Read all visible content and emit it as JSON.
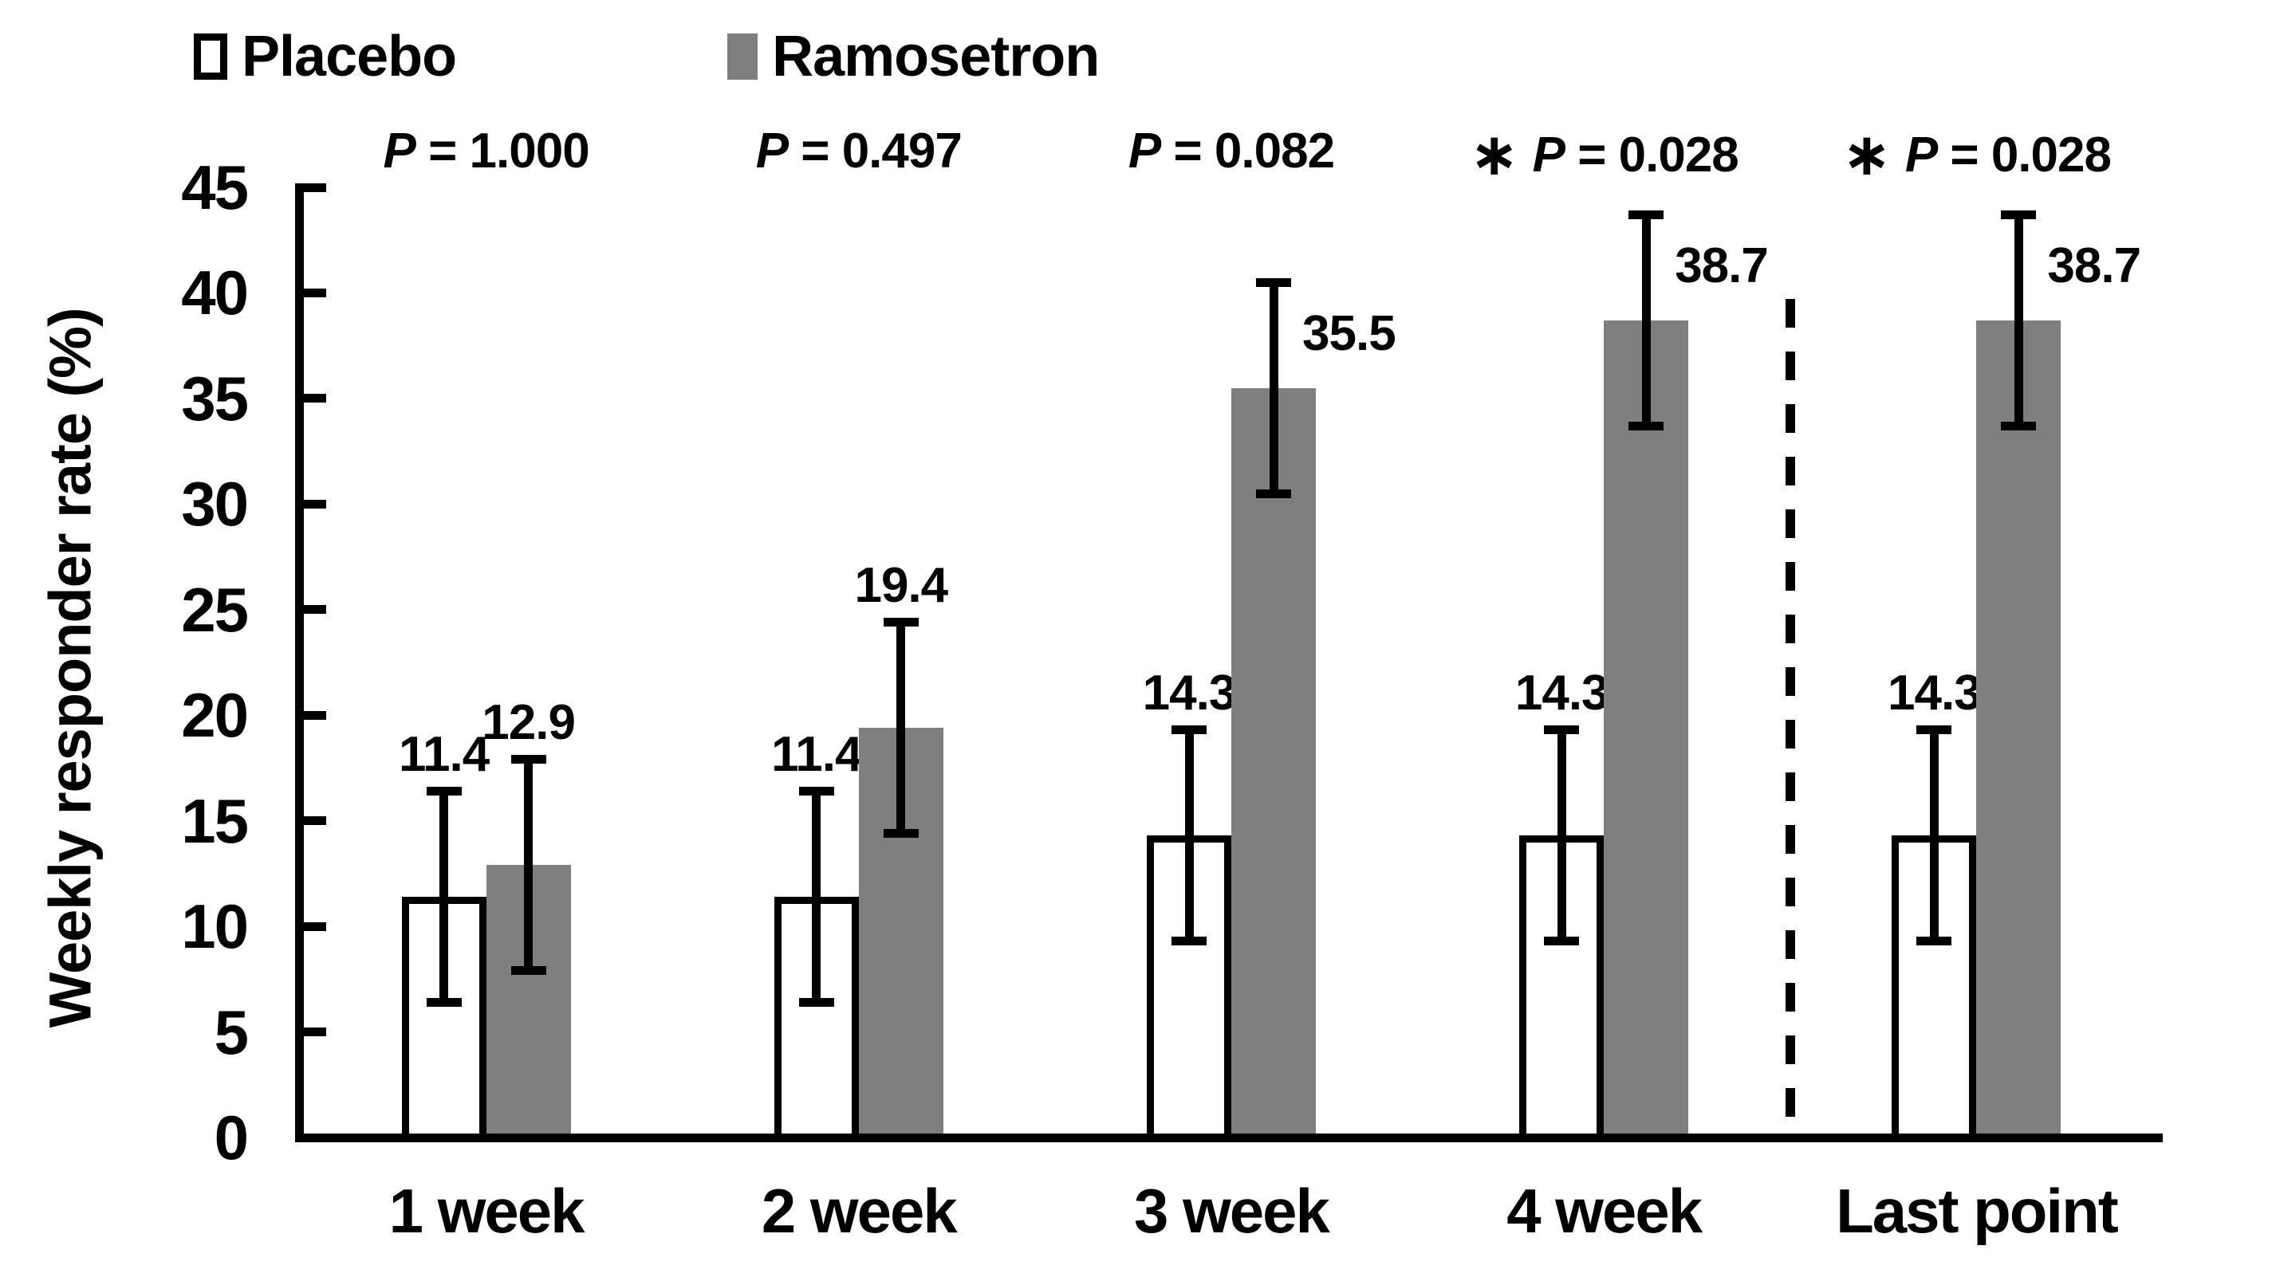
{
  "chart_data": {
    "type": "bar",
    "title": "",
    "ylabel": "Weekly responder rate (%)",
    "xlabel": "",
    "categories": [
      "1 week",
      "2 week",
      "3 week",
      "4 week",
      "Last point"
    ],
    "series": [
      {
        "name": "Placebo",
        "fill": "#ffffff",
        "border": "#000000",
        "values": [
          11.4,
          11.4,
          14.3,
          14.3,
          14.3
        ],
        "value_labels": [
          "11.4",
          "11.4",
          "14.3",
          "14.3",
          "14.3"
        ],
        "error_bars": [
          5.0,
          5.0,
          5.0,
          5.0,
          5.0
        ],
        "label_styles": [
          "above_error",
          "above_error",
          "above_error",
          "above_error",
          "above_error"
        ]
      },
      {
        "name": "Ramosetron",
        "fill": "#7f7f7f",
        "border": null,
        "values": [
          12.9,
          19.4,
          35.5,
          38.7,
          38.7
        ],
        "value_labels": [
          "12.9",
          "19.4",
          "35.5",
          "38.7",
          "38.7"
        ],
        "error_bars": [
          5.0,
          5.0,
          5.0,
          5.0,
          5.0
        ],
        "label_styles": [
          "above_error",
          "above_error",
          "right_of_error",
          "right_of_error",
          "right_of_error"
        ]
      }
    ],
    "p_annotations": [
      {
        "star": "",
        "label": "P = 1.000"
      },
      {
        "star": "",
        "label": "P = 0.497"
      },
      {
        "star": "",
        "label": "P = 0.082"
      },
      {
        "star": "∗",
        "label": "P = 0.028"
      },
      {
        "star": "∗",
        "label": "P = 0.028"
      }
    ],
    "ylim": [
      0,
      45
    ],
    "yticks": [
      0,
      5,
      10,
      15,
      20,
      25,
      30,
      35,
      40,
      45
    ],
    "grid": false,
    "legend_position": "top-left",
    "separator": {
      "style": "dashed-vertical",
      "between": [
        "4 week",
        "Last point"
      ]
    },
    "colors": {
      "axis": "#000000",
      "bar_gray": "#7f7f7f",
      "background": "#ffffff"
    }
  }
}
